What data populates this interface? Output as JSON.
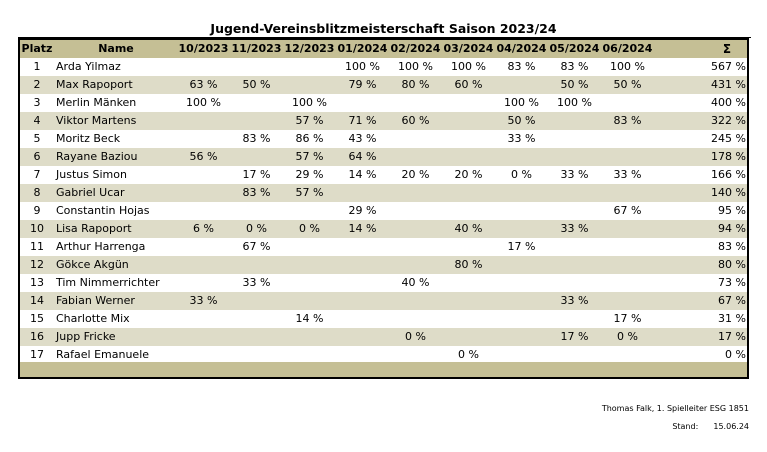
{
  "title": "Jugend-Vereinsblitzmeisterschaft Saison 2023/24",
  "headers": {
    "platz": "Platz",
    "name": "Name",
    "months": [
      "10/2023",
      "11/2023",
      "12/2023",
      "01/2024",
      "02/2024",
      "03/2024",
      "04/2024",
      "05/2024",
      "06/2024"
    ],
    "sum": "Σ"
  },
  "rows": [
    {
      "platz": "1",
      "name": "Arda Yilmaz",
      "m": [
        "",
        "",
        "",
        "100 %",
        "100 %",
        "100 %",
        "83 %",
        "83 %",
        "100 %"
      ],
      "sum": "567 %"
    },
    {
      "platz": "2",
      "name": "Max Rapoport",
      "m": [
        "63 %",
        "50 %",
        "",
        "79 %",
        "80 %",
        "60 %",
        "",
        "50 %",
        "50 %"
      ],
      "sum": "431 %"
    },
    {
      "platz": "3",
      "name": "Merlin Mänken",
      "m": [
        "100 %",
        "",
        "100 %",
        "",
        "",
        "",
        "100 %",
        "100 %",
        ""
      ],
      "sum": "400 %"
    },
    {
      "platz": "4",
      "name": "Viktor Martens",
      "m": [
        "",
        "",
        "57 %",
        "71 %",
        "60 %",
        "",
        "50 %",
        "",
        "83 %"
      ],
      "sum": "322 %"
    },
    {
      "platz": "5",
      "name": "Moritz Beck",
      "m": [
        "",
        "83 %",
        "86 %",
        "43 %",
        "",
        "",
        "33 %",
        "",
        ""
      ],
      "sum": "245 %"
    },
    {
      "platz": "6",
      "name": "Rayane Baziou",
      "m": [
        "56 %",
        "",
        "57 %",
        "64 %",
        "",
        "",
        "",
        "",
        ""
      ],
      "sum": "178 %"
    },
    {
      "platz": "7",
      "name": "Justus Simon",
      "m": [
        "",
        "17 %",
        "29 %",
        "14 %",
        "20 %",
        "20 %",
        "0 %",
        "33 %",
        "33 %"
      ],
      "sum": "166 %"
    },
    {
      "platz": "8",
      "name": "Gabriel Ucar",
      "m": [
        "",
        "83 %",
        "57 %",
        "",
        "",
        "",
        "",
        "",
        ""
      ],
      "sum": "140 %"
    },
    {
      "platz": "9",
      "name": "Constantin Hojas",
      "m": [
        "",
        "",
        "",
        "29 %",
        "",
        "",
        "",
        "",
        "67 %"
      ],
      "sum": "95 %"
    },
    {
      "platz": "10",
      "name": "Lisa Rapoport",
      "m": [
        "6 %",
        "0 %",
        "0 %",
        "14 %",
        "",
        "40 %",
        "",
        "33 %",
        ""
      ],
      "sum": "94 %"
    },
    {
      "platz": "11",
      "name": "Arthur Harrenga",
      "m": [
        "",
        "67 %",
        "",
        "",
        "",
        "",
        "17 %",
        "",
        ""
      ],
      "sum": "83 %"
    },
    {
      "platz": "12",
      "name": "Gökce Akgün",
      "m": [
        "",
        "",
        "",
        "",
        "",
        "80 %",
        "",
        "",
        ""
      ],
      "sum": "80 %"
    },
    {
      "platz": "13",
      "name": "Tim Nimmerrichter",
      "m": [
        "",
        "33 %",
        "",
        "",
        "40 %",
        "",
        "",
        "",
        ""
      ],
      "sum": "73 %"
    },
    {
      "platz": "14",
      "name": "Fabian Werner",
      "m": [
        "33 %",
        "",
        "",
        "",
        "",
        "",
        "",
        "33 %",
        ""
      ],
      "sum": "67 %"
    },
    {
      "platz": "15",
      "name": "Charlotte Mix",
      "m": [
        "",
        "",
        "14 %",
        "",
        "",
        "",
        "",
        "",
        "17 %"
      ],
      "sum": "31 %"
    },
    {
      "platz": "16",
      "name": "Jupp Fricke",
      "m": [
        "",
        "",
        "",
        "",
        "0 %",
        "",
        "",
        "17 %",
        "0 %"
      ],
      "sum": "17 %"
    },
    {
      "platz": "17",
      "name": "Rafael Emanuele",
      "m": [
        "",
        "",
        "",
        "",
        "",
        "0 %",
        "",
        "",
        ""
      ],
      "sum": "0 %"
    }
  ],
  "footer": {
    "author": "Thomas Falk, 1. Spielleiter ESG 1851",
    "stand_label": "Stand:",
    "stand_date": "15.06.24"
  }
}
